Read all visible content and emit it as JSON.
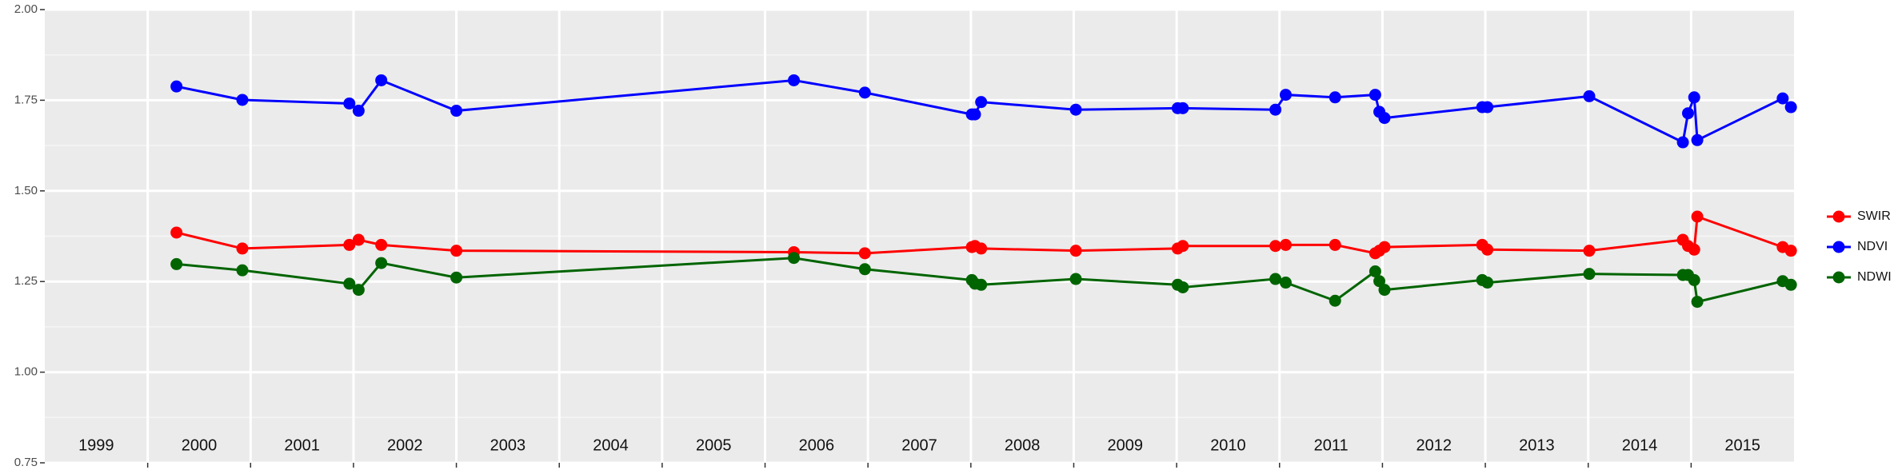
{
  "chart_data": {
    "type": "line",
    "categories": [
      "1999",
      "2000",
      "2001",
      "2002",
      "2003",
      "2004",
      "2005",
      "2006",
      "2007",
      "2008",
      "2009",
      "2010",
      "2011",
      "2012",
      "2013",
      "2014",
      "2015"
    ],
    "xlim": [
      1999,
      2016
    ],
    "ylim": [
      0.75,
      2.0
    ],
    "yticks": [
      {
        "value": 0.75,
        "label": "0.75"
      },
      {
        "value": 1.0,
        "label": "1.00"
      },
      {
        "value": 1.25,
        "label": "1.25"
      },
      {
        "value": 1.5,
        "label": "1.50"
      },
      {
        "value": 1.75,
        "label": "1.75"
      },
      {
        "value": 2.0,
        "label": "2.00"
      }
    ],
    "grid": true,
    "legend": "right",
    "x": [
      2000.28,
      2000.92,
      2001.96,
      2002.05,
      2002.27,
      2003.0,
      2006.28,
      2006.97,
      2008.01,
      2008.04,
      2008.1,
      2009.02,
      2010.01,
      2010.06,
      2010.96,
      2011.06,
      2011.54,
      2011.93,
      2011.97,
      2012.02,
      2012.97,
      2013.02,
      2014.01,
      2014.92,
      2014.97,
      2015.03,
      2015.06,
      2015.89,
      2015.97
    ],
    "series": [
      {
        "name": "SWIR",
        "color": "#ff0000",
        "values": [
          1.385,
          1.341,
          1.351,
          1.365,
          1.351,
          1.335,
          1.331,
          1.328,
          1.345,
          1.348,
          1.341,
          1.335,
          1.341,
          1.348,
          1.348,
          1.351,
          1.351,
          1.328,
          1.335,
          1.345,
          1.351,
          1.338,
          1.335,
          1.365,
          1.348,
          1.338,
          1.429,
          1.345,
          1.335
        ]
      },
      {
        "name": "NDVI",
        "color": "#0000ff",
        "values": [
          1.788,
          1.751,
          1.741,
          1.721,
          1.805,
          1.721,
          1.805,
          1.771,
          1.711,
          1.711,
          1.745,
          1.724,
          1.728,
          1.728,
          1.724,
          1.765,
          1.758,
          1.765,
          1.718,
          1.701,
          1.731,
          1.731,
          1.761,
          1.634,
          1.714,
          1.758,
          1.64,
          1.755,
          1.731
        ]
      },
      {
        "name": "NDWI",
        "color": "#006400",
        "values": [
          1.298,
          1.281,
          1.244,
          1.227,
          1.301,
          1.261,
          1.315,
          1.284,
          1.254,
          1.244,
          1.241,
          1.257,
          1.241,
          1.234,
          1.257,
          1.247,
          1.197,
          1.278,
          1.251,
          1.227,
          1.254,
          1.247,
          1.271,
          1.268,
          1.268,
          1.254,
          1.194,
          1.251,
          1.241
        ]
      }
    ]
  }
}
